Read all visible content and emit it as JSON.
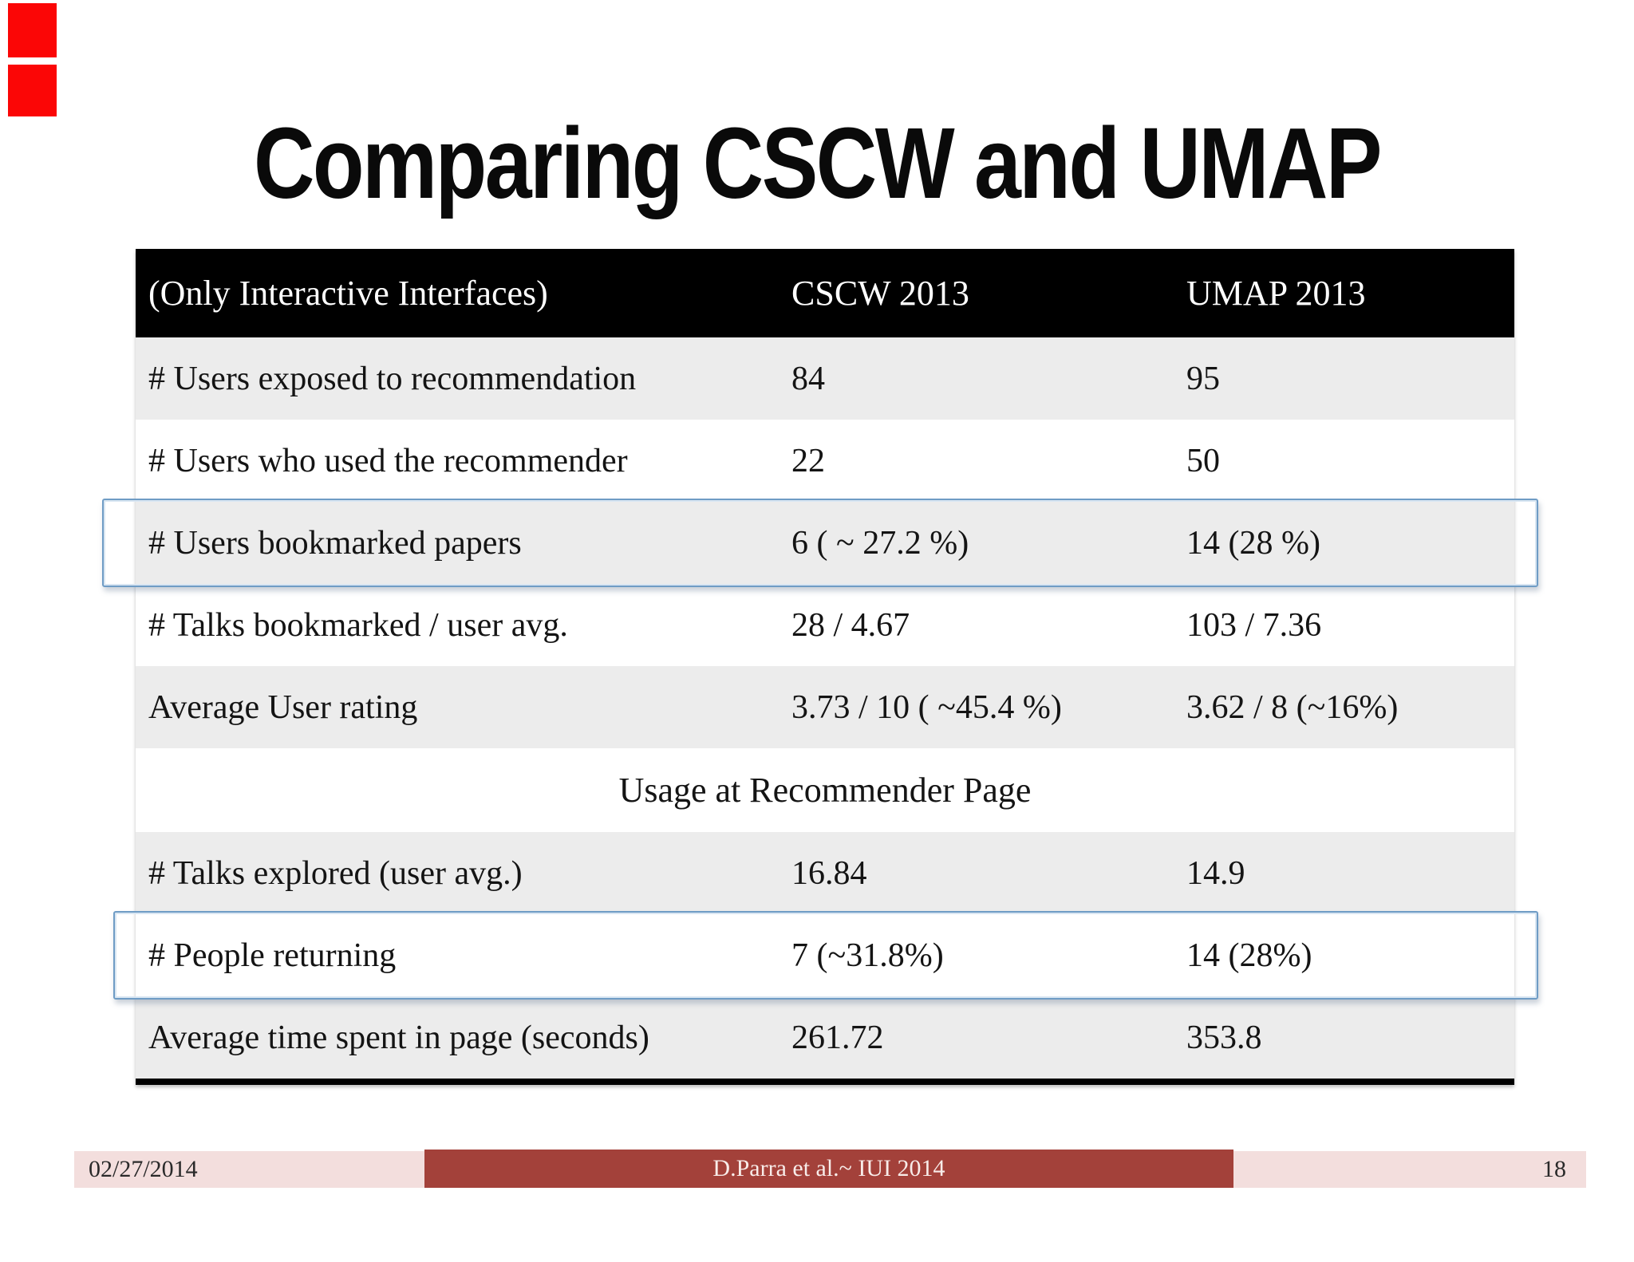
{
  "slide": {
    "title": "Comparing CSCW and UMAP",
    "table": {
      "header": {
        "label": "(Only Interactive Interfaces)",
        "col1": "CSCW 2013",
        "col2": "UMAP 2013"
      },
      "rows": [
        {
          "type": "data",
          "shaded": true,
          "highlighted": false,
          "label": "# Users exposed to recommendation",
          "cscw": "84",
          "umap": "95"
        },
        {
          "type": "data",
          "shaded": false,
          "highlighted": false,
          "label": "# Users who used the recommender",
          "cscw": "22",
          "umap": "50"
        },
        {
          "type": "data",
          "shaded": true,
          "highlighted": true,
          "label": "# Users bookmarked papers",
          "cscw": "6 ( ~ 27.2 %)",
          "umap": "14 (28 %)"
        },
        {
          "type": "data",
          "shaded": false,
          "highlighted": false,
          "label": "# Talks bookmarked / user avg.",
          "cscw": "28 / 4.67",
          "umap": "103 / 7.36"
        },
        {
          "type": "data",
          "shaded": true,
          "highlighted": false,
          "label": "Average User rating",
          "cscw": "3.73 / 10 ( ~45.4 %)",
          "umap": "3.62 / 8 (~16%)"
        },
        {
          "type": "section",
          "label": "Usage at Recommender Page"
        },
        {
          "type": "data",
          "shaded": true,
          "highlighted": false,
          "label": "# Talks explored (user avg.)",
          "cscw": "16.84",
          "umap": "14.9"
        },
        {
          "type": "data",
          "shaded": false,
          "highlighted": true,
          "label": "# People returning",
          "cscw": "7 (~31.8%)",
          "umap": "14 (28%)"
        },
        {
          "type": "data",
          "shaded": true,
          "highlighted": false,
          "label": "Average time spent in page (seconds)",
          "cscw": "261.72",
          "umap": "353.8"
        }
      ]
    },
    "footer": {
      "date": "02/27/2014",
      "credit": "D.Parra et al.~ IUI 2014",
      "page": "18"
    },
    "colors": {
      "red_corner_bars": "#fb0606",
      "shaded_row": "#ececec",
      "header_bg": "#000000",
      "header_fg": "#ffffff",
      "highlight_border": "#6f9cc5",
      "footer_bar_bg": "#f3dedd",
      "footer_box_bg": "#a3413a"
    }
  }
}
